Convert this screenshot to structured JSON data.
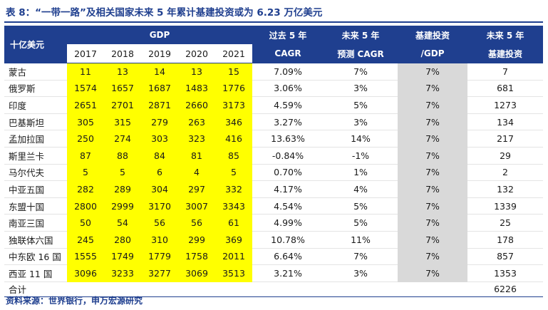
{
  "title": "表 8：“一带一路”及相关国家未来 5 年累计基建投资或为 6.23 万亿美元",
  "header": {
    "unit_label": "十亿美元",
    "gdp_label": "GDP",
    "years": [
      "2017",
      "2018",
      "2019",
      "2020",
      "2021"
    ],
    "cagr_past_l1": "过去 5 年",
    "cagr_past_l2": "CAGR",
    "cagr_fut_l1": "未来 5 年",
    "cagr_fut_l2": "预测 CAGR",
    "ratio_l1": "基建投资",
    "ratio_l2": "/GDP",
    "invest_l1": "未来 5 年",
    "invest_l2": "基建投资"
  },
  "rows": [
    {
      "name": "蒙古",
      "gdp": [
        "11",
        "13",
        "14",
        "13",
        "15"
      ],
      "past": "7.09%",
      "fut": "7%",
      "ratio": "7%",
      "invest": "7"
    },
    {
      "name": "俄罗斯",
      "gdp": [
        "1574",
        "1657",
        "1687",
        "1483",
        "1776"
      ],
      "past": "3.06%",
      "fut": "3%",
      "ratio": "7%",
      "invest": "681"
    },
    {
      "name": "印度",
      "gdp": [
        "2651",
        "2701",
        "2871",
        "2660",
        "3173"
      ],
      "past": "4.59%",
      "fut": "5%",
      "ratio": "7%",
      "invest": "1273"
    },
    {
      "name": "巴基斯坦",
      "gdp": [
        "305",
        "315",
        "279",
        "263",
        "346"
      ],
      "past": "3.27%",
      "fut": "3%",
      "ratio": "7%",
      "invest": "134"
    },
    {
      "name": "孟加拉国",
      "gdp": [
        "250",
        "274",
        "303",
        "323",
        "416"
      ],
      "past": "13.63%",
      "fut": "14%",
      "ratio": "7%",
      "invest": "217"
    },
    {
      "name": "斯里兰卡",
      "gdp": [
        "87",
        "88",
        "84",
        "81",
        "85"
      ],
      "past": "-0.84%",
      "fut": "-1%",
      "ratio": "7%",
      "invest": "29"
    },
    {
      "name": "马尔代夫",
      "gdp": [
        "5",
        "5",
        "6",
        "4",
        "5"
      ],
      "past": "0.70%",
      "fut": "1%",
      "ratio": "7%",
      "invest": "2"
    },
    {
      "name": "中亚五国",
      "gdp": [
        "282",
        "289",
        "304",
        "297",
        "332"
      ],
      "past": "4.17%",
      "fut": "4%",
      "ratio": "7%",
      "invest": "132"
    },
    {
      "name": "东盟十国",
      "gdp": [
        "2800",
        "2999",
        "3170",
        "3007",
        "3343"
      ],
      "past": "4.54%",
      "fut": "5%",
      "ratio": "7%",
      "invest": "1339"
    },
    {
      "name": "南亚三国",
      "gdp": [
        "50",
        "54",
        "56",
        "56",
        "61"
      ],
      "past": "4.99%",
      "fut": "5%",
      "ratio": "7%",
      "invest": "25"
    },
    {
      "name": "独联体六国",
      "gdp": [
        "245",
        "280",
        "310",
        "299",
        "369"
      ],
      "past": "10.78%",
      "fut": "11%",
      "ratio": "7%",
      "invest": "178"
    },
    {
      "name": "中东欧 16 国",
      "gdp": [
        "1555",
        "1749",
        "1779",
        "1758",
        "2011"
      ],
      "past": "6.64%",
      "fut": "7%",
      "ratio": "7%",
      "invest": "857"
    },
    {
      "name": "西亚 11 国",
      "gdp": [
        "3096",
        "3233",
        "3277",
        "3069",
        "3513"
      ],
      "past": "3.21%",
      "fut": "3%",
      "ratio": "7%",
      "invest": "1353"
    }
  ],
  "total": {
    "name": "合计",
    "invest": "6226"
  },
  "source": "资料来源：世界银行，申万宏源研究",
  "colors": {
    "header_blue": "#1f3f8f",
    "gdp_highlight": "#ffff00",
    "ratio_gray": "#d9d9d9"
  }
}
